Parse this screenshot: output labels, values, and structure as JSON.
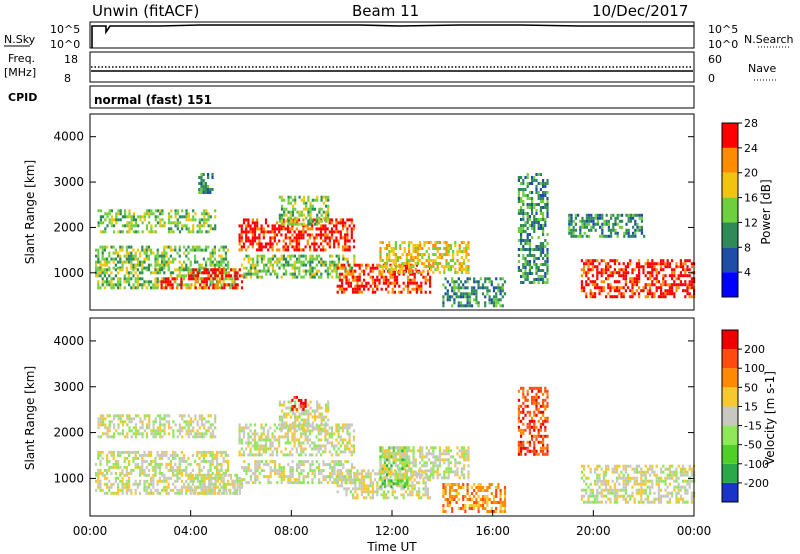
{
  "header": {
    "station": "Unwin (fitACF)",
    "beam": "Beam 11",
    "date": "10/Dec/2017"
  },
  "strips": {
    "nsky_label": "N.Sky",
    "nsearch_label": "N.Search",
    "freq_label_1": "Freq.",
    "freq_label_2": "[MHz]",
    "nave_label": "Nave",
    "cpid_label": "CPID",
    "cpid_value": "normal (fast) 151",
    "noise_ticks": [
      "10^5",
      "10^0"
    ],
    "freq_ticks": [
      "18",
      "8"
    ],
    "nave_ticks": [
      "60",
      "0"
    ]
  },
  "chart_data": [
    {
      "type": "heatmap",
      "name_in_colorbar": "Power [dB]",
      "ylabel": "Slant Range [km]",
      "ylim": [
        180,
        4500
      ],
      "yticks": [
        "1000",
        "2000",
        "3000",
        "4000"
      ],
      "xlim_hours": [
        0,
        24
      ],
      "colorbar_ticks": [
        "4",
        "8",
        "12",
        "16",
        "20",
        "24",
        "28"
      ],
      "colorbar_colors": [
        "#0000ff",
        "#1f4ea8",
        "#2e8b57",
        "#6fcf3f",
        "#f2c40f",
        "#ff8c00",
        "#ff0000"
      ],
      "echo_regions": [
        {
          "t0": 0.3,
          "t1": 5.0,
          "r0": 1900,
          "r1": 2400,
          "level": 3
        },
        {
          "t0": 0.2,
          "t1": 5.5,
          "r0": 1100,
          "r1": 1600,
          "level": 3
        },
        {
          "t0": 0.2,
          "t1": 5.8,
          "r0": 700,
          "r1": 1100,
          "level": 3
        },
        {
          "t0": 2.8,
          "t1": 3.6,
          "r0": 700,
          "r1": 900,
          "level": 6
        },
        {
          "t0": 3.9,
          "t1": 6.0,
          "r0": 700,
          "r1": 1100,
          "level": 6
        },
        {
          "t0": 4.3,
          "t1": 4.9,
          "r0": 2800,
          "r1": 3200,
          "level": 2
        },
        {
          "t0": 5.9,
          "t1": 10.5,
          "r0": 1500,
          "r1": 2200,
          "level": 6
        },
        {
          "t0": 7.5,
          "t1": 9.5,
          "r0": 2100,
          "r1": 2700,
          "level": 3
        },
        {
          "t0": 6.0,
          "t1": 10.5,
          "r0": 900,
          "r1": 1400,
          "level": 3
        },
        {
          "t0": 9.8,
          "t1": 13.5,
          "r0": 600,
          "r1": 1200,
          "level": 6
        },
        {
          "t0": 11.5,
          "t1": 15.0,
          "r0": 1000,
          "r1": 1700,
          "level": 4
        },
        {
          "t0": 14.0,
          "t1": 16.5,
          "r0": 300,
          "r1": 900,
          "level": 2
        },
        {
          "t0": 17.0,
          "t1": 18.2,
          "r0": 800,
          "r1": 3200,
          "level": 2
        },
        {
          "t0": 19.5,
          "t1": 24.0,
          "r0": 500,
          "r1": 1300,
          "level": 6
        },
        {
          "t0": 19.0,
          "t1": 22.0,
          "r0": 1800,
          "r1": 2300,
          "level": 2
        }
      ]
    },
    {
      "type": "heatmap",
      "name_in_colorbar": "Velocity [m s-1]",
      "ylabel": "Slant Range [km]",
      "ylim": [
        180,
        4500
      ],
      "yticks": [
        "1000",
        "2000",
        "3000",
        "4000"
      ],
      "xlim_hours": [
        0,
        24
      ],
      "xticks": [
        "00:00",
        "04:00",
        "08:00",
        "12:00",
        "16:00",
        "20:00",
        "00:00"
      ],
      "xlabel": "Time UT",
      "colorbar_ticks": [
        "200",
        "100",
        "50",
        "15",
        "-15",
        "-50",
        "-100",
        "-200"
      ],
      "colorbar_colors": [
        "#1a33c8",
        "#2aa84a",
        "#4fd028",
        "#8ee85a",
        "#c8c8c0",
        "#f7c830",
        "#ff8a00",
        "#ff4a10",
        "#ee0000"
      ],
      "echo_regions": [
        {
          "t0": 0.3,
          "t1": 5.0,
          "r0": 1900,
          "r1": 2400,
          "level": 4
        },
        {
          "t0": 0.2,
          "t1": 5.5,
          "r0": 1100,
          "r1": 1600,
          "level": 4
        },
        {
          "t0": 0.2,
          "t1": 5.8,
          "r0": 700,
          "r1": 1100,
          "level": 4
        },
        {
          "t0": 3.9,
          "t1": 6.0,
          "r0": 700,
          "r1": 1100,
          "level": 4
        },
        {
          "t0": 5.9,
          "t1": 10.5,
          "r0": 1500,
          "r1": 2200,
          "level": 4
        },
        {
          "t0": 7.5,
          "t1": 9.5,
          "r0": 2100,
          "r1": 2700,
          "level": 4
        },
        {
          "t0": 6.0,
          "t1": 10.5,
          "r0": 900,
          "r1": 1400,
          "level": 4
        },
        {
          "t0": 9.8,
          "t1": 13.5,
          "r0": 600,
          "r1": 1200,
          "level": 4
        },
        {
          "t0": 11.5,
          "t1": 12.6,
          "r0": 800,
          "r1": 1700,
          "level": 2
        },
        {
          "t0": 11.5,
          "t1": 15.0,
          "r0": 1000,
          "r1": 1700,
          "level": 4
        },
        {
          "t0": 14.0,
          "t1": 16.5,
          "r0": 300,
          "r1": 900,
          "level": 6
        },
        {
          "t0": 17.0,
          "t1": 18.2,
          "r0": 1500,
          "r1": 3000,
          "level": 7
        },
        {
          "t0": 19.5,
          "t1": 24.0,
          "r0": 500,
          "r1": 1300,
          "level": 4
        },
        {
          "t0": 8.0,
          "t1": 8.6,
          "r0": 2500,
          "r1": 2800,
          "level": 8
        }
      ]
    }
  ]
}
